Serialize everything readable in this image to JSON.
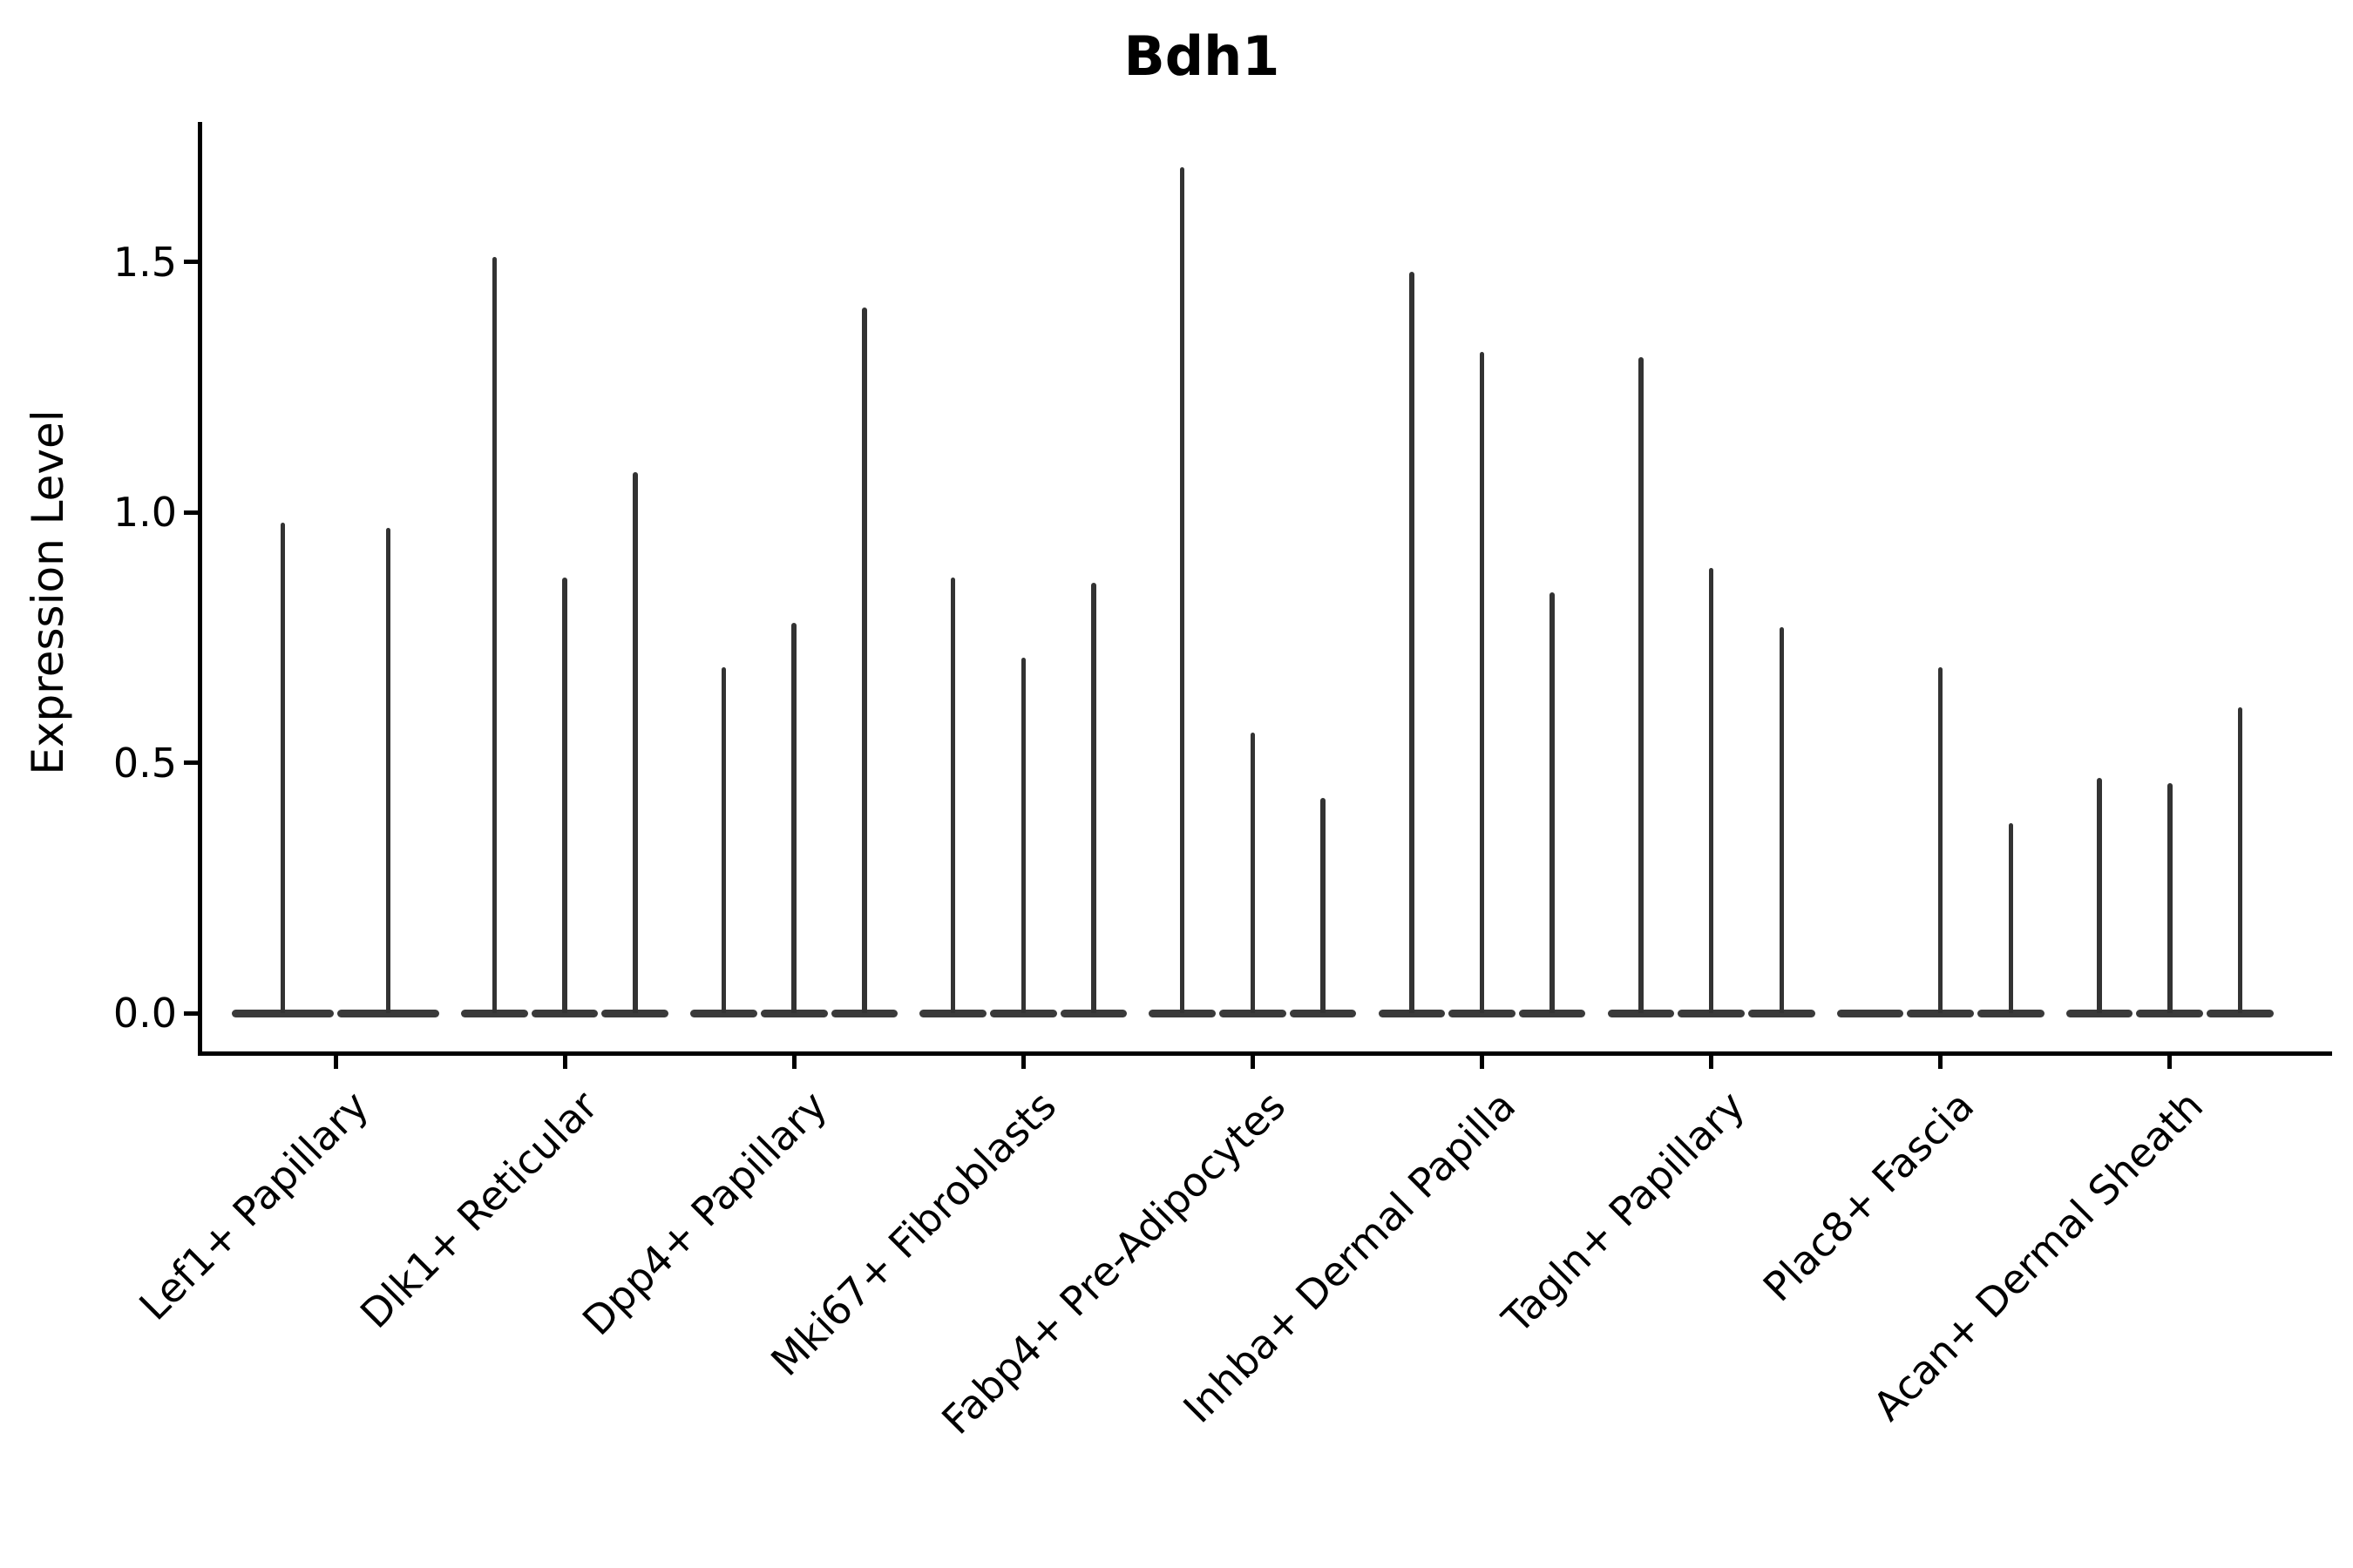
{
  "title": "Bdh1",
  "colors": {
    "violin": "#333333",
    "violin_base": "#3a3a3a",
    "axis": "#000000",
    "text": "#000000",
    "background": "#ffffff"
  },
  "chart_data": {
    "type": "violin",
    "title": "Bdh1",
    "xlabel": "",
    "ylabel": "Expression Level",
    "legend": "none",
    "grid": false,
    "x_tick_rotation": 45,
    "ylim": [
      -0.08,
      1.78
    ],
    "y_ticks": [
      {
        "value": 0.0,
        "label": "0.0"
      },
      {
        "value": 0.5,
        "label": "0.5"
      },
      {
        "value": 1.0,
        "label": "1.0"
      },
      {
        "value": 1.5,
        "label": "1.5"
      }
    ],
    "categories": [
      "Lef1+ Papillary",
      "Dlk1+ Reticular",
      "Dpp4+ Papillary",
      "Mki67+ Fibroblasts",
      "Fabp4+ Pre-Adipocytes",
      "Inhba+ Dermal Papilla",
      "Tagln+ Papillary",
      "Plac8+ Fascia",
      "Acan+ Dermal Sheath"
    ],
    "series": [
      {
        "category": "Lef1+ Papillary",
        "violin_maxima": [
          0.98,
          0.97
        ]
      },
      {
        "category": "Dlk1+ Reticular",
        "violin_maxima": [
          1.51,
          0.87,
          1.08
        ]
      },
      {
        "category": "Dpp4+ Papillary",
        "violin_maxima": [
          0.69,
          0.78,
          1.41
        ]
      },
      {
        "category": "Mki67+ Fibroblasts",
        "violin_maxima": [
          0.87,
          0.71,
          0.86
        ]
      },
      {
        "category": "Fabp4+ Pre-Adipocytes",
        "violin_maxima": [
          1.69,
          0.56,
          0.43
        ]
      },
      {
        "category": "Inhba+ Dermal Papilla",
        "violin_maxima": [
          1.48,
          1.32,
          0.84
        ]
      },
      {
        "category": "Tagln+ Papillary",
        "violin_maxima": [
          1.31,
          0.89,
          0.77
        ]
      },
      {
        "category": "Plac8+ Fascia",
        "violin_maxima": [
          0.0,
          0.69,
          0.38
        ]
      },
      {
        "category": "Acan+ Dermal Sheath",
        "violin_maxima": [
          0.47,
          0.46,
          0.61
        ]
      }
    ]
  }
}
